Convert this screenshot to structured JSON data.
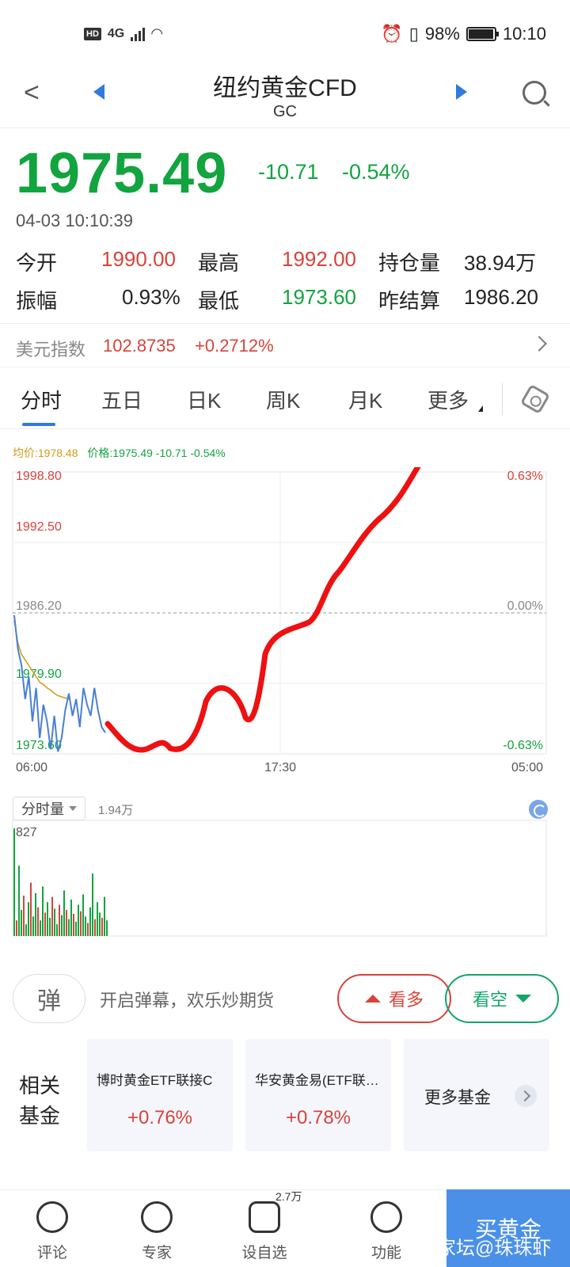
{
  "status_bar": {
    "hd": "HD",
    "network": "4G",
    "battery": "98%",
    "time": "10:10"
  },
  "nav": {
    "title": "纽约黄金CFD",
    "subtitle": "GC"
  },
  "quote": {
    "price": "1975.49",
    "change": "-10.71",
    "change_pct": "-0.54%",
    "timestamp": "04-03 10:10:39",
    "stats": [
      {
        "label": "今开",
        "value": "1990.00"
      },
      {
        "label": "最高",
        "value": "1992.00"
      },
      {
        "label": "持仓量",
        "value": "38.94万"
      },
      {
        "label": "振幅",
        "value": "0.93%"
      },
      {
        "label": "最低",
        "value": "1973.60"
      },
      {
        "label": "昨结算",
        "value": "1986.20"
      }
    ]
  },
  "dxy": {
    "label": "美元指数",
    "value": "102.8735",
    "change": "+0.2712%"
  },
  "tabs": [
    "分时",
    "五日",
    "日K",
    "周K",
    "月K",
    "更多"
  ],
  "legend": {
    "avg": "均价:1978.48",
    "price": "价格:1975.49  -10.71  -0.54%"
  },
  "chart_data": {
    "type": "line",
    "y_labels": [
      "1998.80",
      "1992.50",
      "1986.20",
      "1979.90",
      "1973.60"
    ],
    "pct_labels": [
      "0.63%",
      "0.00%",
      "-0.63%"
    ],
    "x_labels": [
      "06:00",
      "17:30",
      "05:00"
    ],
    "ylim": [
      1973.6,
      1998.8
    ],
    "reference": 1986.2,
    "series": [
      {
        "values": [
          1986.0,
          1983.0,
          1981.5,
          1978.5,
          1980.5,
          1976.5,
          1979.5,
          1975.0,
          1978.0,
          1976.5,
          1974.0,
          1977.0,
          1973.8,
          1975.0,
          1977.5,
          1979.0,
          1977.0,
          1978.5,
          1976.0,
          1979.5,
          1978.0,
          1977.0,
          1979.5,
          1977.5,
          1976.0,
          1975.5
        ]
      },
      {
        "values": [
          1985.5,
          1983.5,
          1982.5,
          1982.0,
          1981.5,
          1981.0,
          1980.5,
          1980.0,
          1979.8,
          1979.5,
          1979.3,
          1979.0,
          1978.8,
          1978.7,
          1978.6,
          1978.5
        ]
      }
    ]
  },
  "volume": {
    "selector": "分时量",
    "total": "1.94万",
    "max_label": "827",
    "bars": [
      827,
      120,
      540,
      200,
      310,
      90,
      260,
      410,
      150,
      330,
      220,
      120,
      380,
      180,
      260,
      140,
      300,
      210,
      90,
      240,
      160,
      350,
      200,
      130,
      280,
      170,
      110,
      240,
      190,
      320,
      150,
      100,
      220,
      480,
      130,
      260,
      180,
      140,
      300,
      120
    ]
  },
  "danmu": {
    "icon_text": "弹",
    "text": "开启弹幕，欢乐炒期货"
  },
  "buttons": {
    "bull": "看多",
    "bear": "看空"
  },
  "funds": {
    "label": "相关基金",
    "items": [
      {
        "name": "博时黄金ETF联接C",
        "pct": "+0.76%"
      },
      {
        "name": "华安黄金易(ETF联接…",
        "pct": "+0.78%"
      }
    ],
    "more": "更多基金"
  },
  "bottom_bar": {
    "items": [
      {
        "label": "评论"
      },
      {
        "label": "专家"
      },
      {
        "label": "设自选",
        "badge": "2.7万"
      },
      {
        "label": "功能"
      }
    ],
    "buy": "买黄金"
  },
  "watermark": "大家坛@珠珠虾",
  "colors": {
    "up": "#d8433a",
    "down": "#12a43f",
    "accent": "#2f7bdc",
    "avg_line": "#d29a14",
    "price_line": "#4a7fd6"
  }
}
